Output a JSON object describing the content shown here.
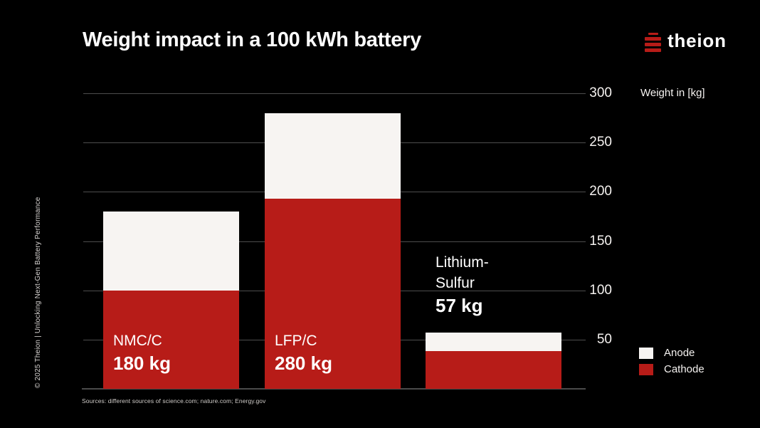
{
  "slide": {
    "title": "Weight impact in a 100 kWh battery",
    "copyright_vertical_text": "© 2025 Theion  |  Unlocking Next-Gen Battery Performance",
    "sources": "Sources: different sources of science.com; nature.com; Energy.gov"
  },
  "brand": {
    "name": "theion",
    "logo_icon": "theion-stacked-bars-icon",
    "accent_color": "#b71c18"
  },
  "colors": {
    "background": "#000000",
    "anode_white": "#f7f4f2",
    "cathode_red": "#b71c18",
    "gridline_gray": "#4d4d4d",
    "text_white": "#ffffff"
  },
  "chart_data": {
    "type": "bar",
    "stacked": true,
    "title": "Weight impact in a 100 kWh battery",
    "categories": [
      "NMC/C",
      "LFP/C",
      "Lithium-Sulfur"
    ],
    "category_label_lines": [
      [
        "NMC/C"
      ],
      [
        "LFP/C"
      ],
      [
        "Lithium-",
        "Sulfur"
      ]
    ],
    "series": [
      {
        "name": "Anode",
        "color": "#f7f4f2",
        "values": [
          80,
          87,
          19
        ]
      },
      {
        "name": "Cathode",
        "color": "#b71c18",
        "values": [
          100,
          193,
          38
        ]
      }
    ],
    "totals": [
      180,
      280,
      57
    ],
    "total_labels": [
      "180 kg",
      "280 kg",
      "57 kg"
    ],
    "label_positions": [
      "inside",
      "inside",
      "above"
    ],
    "xlabel": "",
    "ylabel": "Weight in [kg]",
    "ylim": [
      0,
      300
    ],
    "yticks": [
      50,
      100,
      150,
      200,
      250,
      300
    ],
    "grid": true,
    "legend": [
      {
        "label": "Anode",
        "color": "#f7f4f2"
      },
      {
        "label": "Cathode",
        "color": "#b71c18"
      }
    ],
    "legend_position": "bottom-right"
  }
}
